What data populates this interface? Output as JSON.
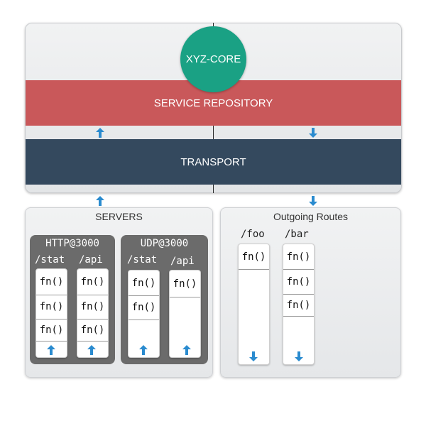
{
  "core": {
    "name": "XYZ-CORE",
    "repository": "SERVICE REPOSITORY",
    "transport": "TRANSPORT"
  },
  "colors": {
    "core": "#1aa184",
    "repository": "#c9585a",
    "transport": "#34495e",
    "server_box": "#6b6b6b",
    "arrow": "#2a8bcf"
  },
  "servers": {
    "title": "SERVERS",
    "http": {
      "title": "HTTP@3000",
      "routes": [
        {
          "path": "/stat",
          "handlers": [
            "fn()",
            "fn()",
            "fn()"
          ]
        },
        {
          "path": "/api",
          "handlers": [
            "fn()",
            "fn()",
            "fn()"
          ]
        }
      ]
    },
    "udp": {
      "title": "UDP@3000",
      "routes": [
        {
          "path": "/stat",
          "handlers": [
            "fn()",
            "fn()"
          ]
        },
        {
          "path": "/api",
          "handlers": [
            "fn()"
          ]
        }
      ]
    }
  },
  "outgoing": {
    "title": "Outgoing Routes",
    "routes": [
      {
        "path": "/foo",
        "handlers": [
          "fn()"
        ]
      },
      {
        "path": "/bar",
        "handlers": [
          "fn()",
          "fn()",
          "fn()"
        ]
      }
    ]
  },
  "icons": {
    "up": "arrow-up-icon",
    "down": "arrow-down-icon"
  }
}
